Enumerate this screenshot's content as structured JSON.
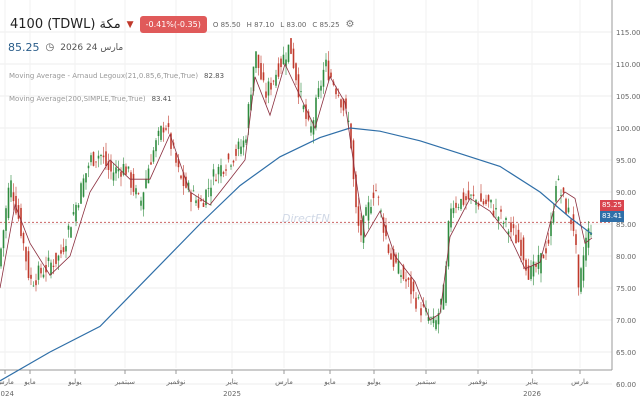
{
  "header": {
    "symbol": "4100 (TDWL) مكة",
    "change": "-0.41%(-0.35)",
    "ohlc": [
      {
        "k": "O",
        "v": "85.50"
      },
      {
        "k": "H",
        "v": "87.10"
      },
      {
        "k": "L",
        "v": "83.00"
      },
      {
        "k": "C",
        "v": "85.25"
      }
    ],
    "last": "85.25",
    "date": "مارس 24 2026"
  },
  "indicators": [
    {
      "label": "Moving Average - Arnaud Legoux(21,0.85,6,True,True)",
      "value": "82.83"
    },
    {
      "label": "Moving Average(200,SIMPLE,True,True)",
      "value": "83.41"
    }
  ],
  "watermark": "DirectFN",
  "badges": {
    "price": "85.25",
    "ma200": "83.41"
  },
  "colors": {
    "up": "#2e8b3e",
    "down": "#c0392b",
    "ma200": "#2f6fa8",
    "legoux": "#8b2e3e"
  },
  "chart_data": {
    "type": "candlestick",
    "y_ticks": [
      "115.00",
      "110.00",
      "105.00",
      "100.00",
      "95.00",
      "90.00",
      "85.00",
      "80.00",
      "75.00",
      "70.00",
      "65.00",
      "60.00"
    ],
    "ylim": [
      58,
      118
    ],
    "x_ticks": [
      {
        "m": "مارس",
        "y": "2024"
      },
      {
        "m": "مايو",
        "y": ""
      },
      {
        "m": "يوليو",
        "y": ""
      },
      {
        "m": "سبتمبر",
        "y": ""
      },
      {
        "m": "نوفمبر",
        "y": ""
      },
      {
        "m": "يناير",
        "y": "2025"
      },
      {
        "m": "مارس",
        "y": ""
      },
      {
        "m": "مايو",
        "y": ""
      },
      {
        "m": "يوليو",
        "y": ""
      },
      {
        "m": "سبتمبر",
        "y": ""
      },
      {
        "m": "نوفمبر",
        "y": ""
      },
      {
        "m": "يناير",
        "y": "2026"
      },
      {
        "m": "مارس",
        "y": ""
      }
    ],
    "price_path": [
      [
        0,
        80
      ],
      [
        10,
        92
      ],
      [
        20,
        85
      ],
      [
        30,
        76
      ],
      [
        45,
        78
      ],
      [
        60,
        80
      ],
      [
        70,
        85
      ],
      [
        90,
        95
      ],
      [
        100,
        96
      ],
      [
        110,
        93
      ],
      [
        125,
        94
      ],
      [
        140,
        88
      ],
      [
        150,
        95
      ],
      [
        165,
        101
      ],
      [
        180,
        92
      ],
      [
        200,
        88
      ],
      [
        215,
        93
      ],
      [
        235,
        96
      ],
      [
        245,
        98
      ],
      [
        255,
        112
      ],
      [
        265,
        105
      ],
      [
        280,
        110
      ],
      [
        290,
        113
      ],
      [
        300,
        105
      ],
      [
        310,
        99
      ],
      [
        325,
        110
      ],
      [
        340,
        105
      ],
      [
        350,
        100
      ],
      [
        355,
        88
      ],
      [
        360,
        83
      ],
      [
        375,
        91
      ],
      [
        390,
        80
      ],
      [
        410,
        75
      ],
      [
        420,
        72
      ],
      [
        430,
        70
      ],
      [
        435,
        69
      ],
      [
        445,
        75
      ],
      [
        450,
        88
      ],
      [
        470,
        89
      ],
      [
        490,
        88
      ],
      [
        510,
        84
      ],
      [
        520,
        82
      ],
      [
        530,
        77
      ],
      [
        540,
        79
      ],
      [
        550,
        83
      ],
      [
        556,
        92
      ],
      [
        565,
        88
      ],
      [
        575,
        84
      ],
      [
        578,
        73
      ],
      [
        585,
        82
      ],
      [
        592,
        85.25
      ]
    ],
    "ma200": [
      [
        0,
        60.5
      ],
      [
        50,
        65
      ],
      [
        100,
        69
      ],
      [
        150,
        77
      ],
      [
        200,
        85
      ],
      [
        240,
        91
      ],
      [
        280,
        95.5
      ],
      [
        320,
        98.5
      ],
      [
        350,
        100
      ],
      [
        380,
        99.5
      ],
      [
        420,
        98
      ],
      [
        460,
        96
      ],
      [
        500,
        94
      ],
      [
        540,
        90
      ],
      [
        570,
        86
      ],
      [
        592,
        83.41
      ]
    ],
    "legoux": [
      [
        0,
        75
      ],
      [
        15,
        88
      ],
      [
        30,
        82
      ],
      [
        50,
        77
      ],
      [
        70,
        80
      ],
      [
        90,
        90
      ],
      [
        110,
        95
      ],
      [
        130,
        92
      ],
      [
        150,
        92
      ],
      [
        170,
        99
      ],
      [
        190,
        90
      ],
      [
        210,
        88
      ],
      [
        230,
        92
      ],
      [
        245,
        95
      ],
      [
        255,
        108
      ],
      [
        270,
        102
      ],
      [
        285,
        110
      ],
      [
        300,
        105
      ],
      [
        315,
        100
      ],
      [
        330,
        108
      ],
      [
        345,
        104
      ],
      [
        355,
        93
      ],
      [
        365,
        83
      ],
      [
        380,
        87
      ],
      [
        395,
        80
      ],
      [
        415,
        76
      ],
      [
        430,
        70
      ],
      [
        440,
        71
      ],
      [
        450,
        83
      ],
      [
        470,
        89
      ],
      [
        490,
        87
      ],
      [
        510,
        83
      ],
      [
        525,
        78
      ],
      [
        540,
        79
      ],
      [
        555,
        88
      ],
      [
        565,
        90
      ],
      [
        575,
        89
      ],
      [
        585,
        82
      ],
      [
        592,
        82.83
      ]
    ]
  }
}
